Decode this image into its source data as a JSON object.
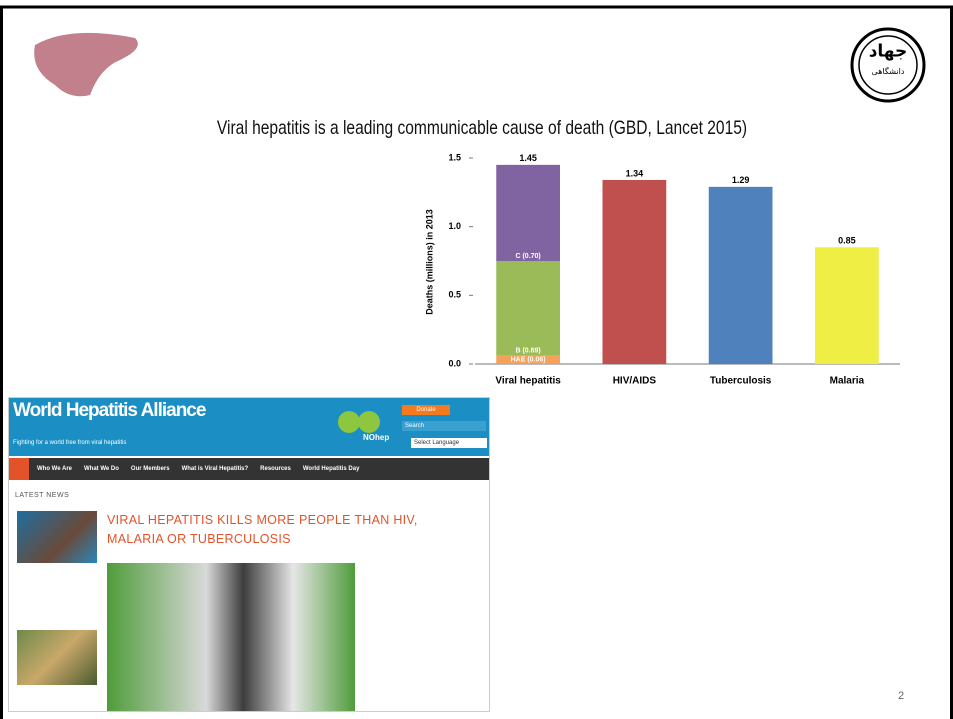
{
  "slide": {
    "title": "Viral hepatitis is a leading communicable cause of death (GBD, Lancet  2015)",
    "page_number": "2",
    "logo_right": {
      "line1": "جهاد",
      "line2": "دانشگاهی"
    }
  },
  "chart_data": {
    "type": "bar",
    "stacked": true,
    "y_label": "Deaths (millions) in 2013",
    "categories": [
      "Viral hepatitis",
      "HIV/AIDS",
      "Tuberculosis",
      "Malaria"
    ],
    "series": [
      {
        "color": "#f5a15a",
        "values": [
          0.06,
          null,
          null,
          null
        ],
        "value_labels": [
          "HAE (0.06)",
          null,
          null,
          null
        ]
      },
      {
        "color": "#9bbb59",
        "values": [
          0.69,
          null,
          null,
          null
        ],
        "value_labels": [
          "B (0.69)",
          null,
          null,
          null
        ]
      },
      {
        "color": "#8064a2",
        "values": [
          0.7,
          null,
          null,
          null
        ],
        "value_labels": [
          "C (0.70)",
          null,
          null,
          null
        ]
      },
      {
        "color": "#c0504d",
        "values": [
          null,
          1.34,
          null,
          null
        ]
      },
      {
        "color": "#4f81bd",
        "values": [
          null,
          null,
          1.29,
          null
        ]
      },
      {
        "color": "#eeee44",
        "values": [
          null,
          null,
          null,
          0.85
        ]
      }
    ],
    "totals": [
      1.45,
      1.34,
      1.29,
      0.85
    ],
    "ylim": [
      0,
      1.5
    ],
    "yticks": [
      {
        "value": 0,
        "label": "0.0"
      },
      0.5,
      {
        "value": 1,
        "label": "1.0"
      },
      1.5
    ],
    "grid": false
  },
  "website": {
    "brand": "World Hepatitis Alliance",
    "tagline": "Fighting for a world free from viral hepatitis",
    "donate": "Donate",
    "search": "Search",
    "language": "Select Language",
    "nohep": "NOhep",
    "nav": [
      "Who We Are",
      "What We Do",
      "Our Members",
      "What is Viral Hepatitis?",
      "Resources",
      "World Hepatitis Day"
    ],
    "section": "LATEST NEWS",
    "headline": "VIRAL HEPATITIS KILLS MORE PEOPLE THAN HIV, MALARIA OR TUBERCULOSIS"
  }
}
